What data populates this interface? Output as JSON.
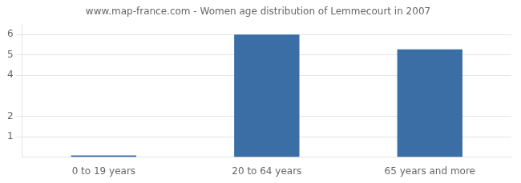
{
  "chart_data": {
    "type": "bar",
    "title": "www.map-france.com - Women age distribution of Lemmecourt in 2007",
    "categories": [
      "0 to 19 years",
      "20 to 64 years",
      "65 years and more"
    ],
    "values": [
      0.08,
      6,
      5.27
    ],
    "color": "#3a6ea5",
    "ylim": [
      0,
      6.5
    ],
    "yticks": [
      1,
      2,
      4,
      5,
      6
    ],
    "grid": true
  }
}
